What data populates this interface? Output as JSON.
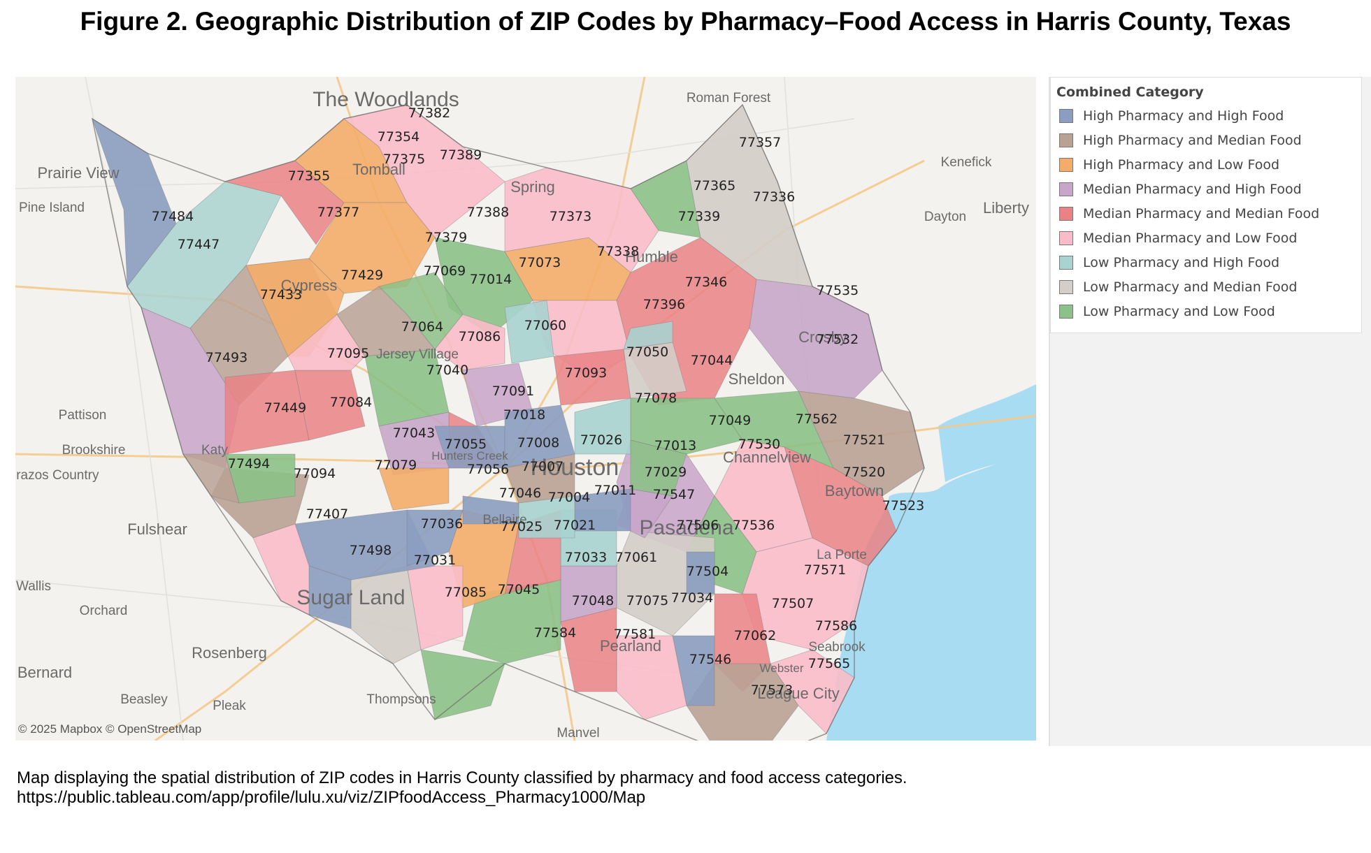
{
  "title": "Figure 2. Geographic Distribution of ZIP Codes by Pharmacy–Food Access in Harris County, Texas",
  "attribution": "© 2025 Mapbox © OpenStreetMap",
  "legend": {
    "title": "Combined Category",
    "items": [
      {
        "label": "High Pharmacy and High Food",
        "color": "#8b9dc0"
      },
      {
        "label": "High Pharmacy and Median Food",
        "color": "#b9a294"
      },
      {
        "label": "High Pharmacy and Low Food",
        "color": "#f4ad69"
      },
      {
        "label": "Median Pharmacy and High Food",
        "color": "#c8a6c9"
      },
      {
        "label": "Median Pharmacy and Median Food",
        "color": "#ea8285"
      },
      {
        "label": "Median Pharmacy and Low Food",
        "color": "#f9bcc8"
      },
      {
        "label": "Low Pharmacy and High Food",
        "color": "#a9d3d0"
      },
      {
        "label": "Low Pharmacy and Median Food",
        "color": "#d4cdc8"
      },
      {
        "label": "Low Pharmacy and Low Food",
        "color": "#8cc187"
      }
    ]
  },
  "places": [
    "The Woodlands",
    "Roman Forest",
    "Kenefick",
    "Prairie View",
    "Pine Island",
    "Tomball",
    "Spring",
    "Dayton",
    "Liberty",
    "Humble",
    "Cypress",
    "Crosby",
    "Sheldon",
    "Jersey Village",
    "Pattison",
    "Brookshire",
    "Katy",
    "Channelview",
    "Hunters Creek",
    "Houston",
    "Baytown",
    "Brazos Country",
    "Fulshear",
    "Bellaire",
    "Pasadena",
    "La Porte",
    "Wallis",
    "Orchard",
    "Sugar Land",
    "Pearland",
    "Seabrook",
    "Rosenberg",
    "Bernard",
    "Beasley",
    "Pleak",
    "Thompsons",
    "Webster",
    "League City",
    "Manvel"
  ],
  "zips": [
    "77382",
    "77354",
    "77375",
    "77389",
    "77355",
    "77357",
    "77365",
    "77336",
    "77484",
    "77377",
    "77388",
    "77373",
    "77339",
    "77447",
    "77379",
    "77338",
    "77429",
    "77069",
    "77014",
    "77073",
    "77346",
    "77433",
    "77535",
    "77396",
    "77064",
    "77060",
    "77086",
    "77532",
    "77493",
    "77095",
    "77050",
    "77040",
    "77044",
    "77093",
    "77091",
    "77078",
    "77449",
    "77084",
    "77018",
    "77043",
    "77049",
    "77562",
    "77055",
    "77008",
    "77026",
    "77013",
    "77530",
    "77521",
    "77494",
    "77079",
    "77056",
    "77007",
    "77029",
    "77520",
    "77094",
    "77046",
    "77004",
    "77011",
    "77547",
    "77523",
    "77407",
    "77036",
    "77025",
    "77021",
    "77506",
    "77536",
    "77498",
    "77031",
    "77033",
    "77061",
    "77504",
    "77571",
    "77085",
    "77045",
    "77048",
    "77075",
    "77034",
    "77507",
    "77584",
    "77581",
    "77062",
    "77586",
    "77546",
    "77565",
    "77573"
  ],
  "caption": "Map displaying the spatial distribution of ZIP codes in Harris County classified by pharmacy and food access categories. https://public.tableau.com/app/profile/lulu.xu/viz/ZIPfoodAccess_Pharmacy1000/Map"
}
